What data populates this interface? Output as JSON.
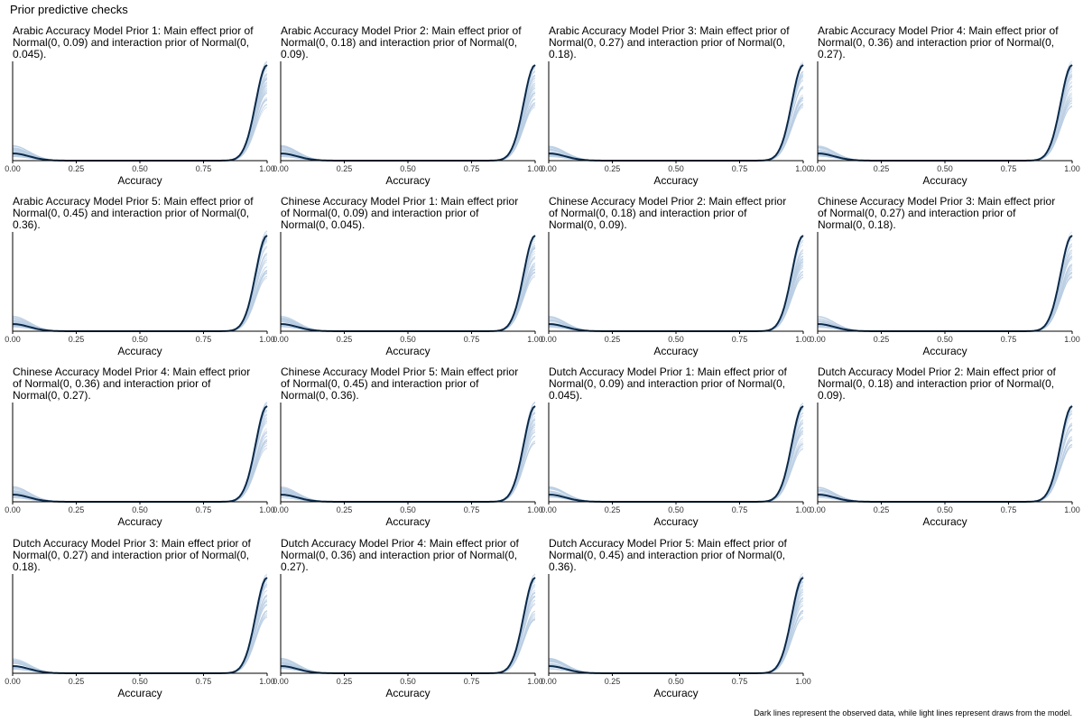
{
  "page": {
    "title": "Prior predictive checks",
    "caption": "Dark lines represent the observed data, while light lines represent draws from the model."
  },
  "colors": {
    "observed": "#0b2a4a",
    "draws": "#b9cde3",
    "axis": "#000000",
    "tick_text": "#333333"
  },
  "chart_data": [
    {
      "type": "line",
      "title": "Arabic Accuracy Model Prior 1: Main effect prior of Normal(0, 0.09) and interaction prior of Normal(0, 0.045).",
      "xlabel": "Accuracy",
      "xlim": [
        0,
        1
      ],
      "xticks": [
        "0.00",
        "0.25",
        "0.50",
        "0.75",
        "1.00"
      ],
      "series": [
        {
          "role": "observed"
        },
        {
          "role": "draws"
        }
      ]
    },
    {
      "type": "line",
      "title": "Arabic Accuracy Model Prior 2: Main effect prior of Normal(0, 0.18) and interaction prior of Normal(0, 0.09).",
      "xlabel": "Accuracy",
      "xlim": [
        0,
        1
      ],
      "xticks": [
        "0.00",
        "0.25",
        "0.50",
        "0.75",
        "1.00"
      ],
      "series": [
        {
          "role": "observed"
        },
        {
          "role": "draws"
        }
      ]
    },
    {
      "type": "line",
      "title": "Arabic Accuracy Model Prior 3: Main effect prior of Normal(0, 0.27) and interaction prior of Normal(0, 0.18).",
      "xlabel": "Accuracy",
      "xlim": [
        0,
        1
      ],
      "xticks": [
        "0.00",
        "0.25",
        "0.50",
        "0.75",
        "1.00"
      ],
      "series": [
        {
          "role": "observed"
        },
        {
          "role": "draws"
        }
      ]
    },
    {
      "type": "line",
      "title": "Arabic Accuracy Model Prior 4: Main effect prior of Normal(0, 0.36) and interaction prior of Normal(0, 0.27).",
      "xlabel": "Accuracy",
      "xlim": [
        0,
        1
      ],
      "xticks": [
        "0.00",
        "0.25",
        "0.50",
        "0.75",
        "1.00"
      ],
      "series": [
        {
          "role": "observed"
        },
        {
          "role": "draws"
        }
      ]
    },
    {
      "type": "line",
      "title": "Arabic Accuracy Model Prior 5: Main effect prior of Normal(0, 0.45) and interaction prior of Normal(0, 0.36).",
      "xlabel": "Accuracy",
      "xlim": [
        0,
        1
      ],
      "xticks": [
        "0.00",
        "0.25",
        "0.50",
        "0.75",
        "1.00"
      ],
      "series": [
        {
          "role": "observed"
        },
        {
          "role": "draws"
        }
      ]
    },
    {
      "type": "line",
      "title": "Chinese Accuracy Model Prior 1: Main effect prior of Normal(0, 0.09) and interaction prior of Normal(0, 0.045).",
      "xlabel": "Accuracy",
      "xlim": [
        0,
        1
      ],
      "xticks": [
        "0.00",
        "0.25",
        "0.50",
        "0.75",
        "1.00"
      ],
      "series": [
        {
          "role": "observed"
        },
        {
          "role": "draws"
        }
      ]
    },
    {
      "type": "line",
      "title": "Chinese Accuracy Model Prior 2: Main effect prior of Normal(0, 0.18) and interaction prior of Normal(0, 0.09).",
      "xlabel": "Accuracy",
      "xlim": [
        0,
        1
      ],
      "xticks": [
        "0.00",
        "0.25",
        "0.50",
        "0.75",
        "1.00"
      ],
      "series": [
        {
          "role": "observed"
        },
        {
          "role": "draws"
        }
      ]
    },
    {
      "type": "line",
      "title": "Chinese Accuracy Model Prior 3: Main effect prior of Normal(0, 0.27) and interaction prior of Normal(0, 0.18).",
      "xlabel": "Accuracy",
      "xlim": [
        0,
        1
      ],
      "xticks": [
        "0.00",
        "0.25",
        "0.50",
        "0.75",
        "1.00"
      ],
      "series": [
        {
          "role": "observed"
        },
        {
          "role": "draws"
        }
      ]
    },
    {
      "type": "line",
      "title": "Chinese Accuracy Model Prior 4: Main effect prior of Normal(0, 0.36) and interaction prior of Normal(0, 0.27).",
      "xlabel": "Accuracy",
      "xlim": [
        0,
        1
      ],
      "xticks": [
        "0.00",
        "0.25",
        "0.50",
        "0.75",
        "1.00"
      ],
      "series": [
        {
          "role": "observed"
        },
        {
          "role": "draws"
        }
      ]
    },
    {
      "type": "line",
      "title": "Chinese Accuracy Model Prior 5: Main effect prior of Normal(0, 0.45) and interaction prior of Normal(0, 0.36).",
      "xlabel": "Accuracy",
      "xlim": [
        0,
        1
      ],
      "xticks": [
        "0.00",
        "0.25",
        "0.50",
        "0.75",
        "1.00"
      ],
      "series": [
        {
          "role": "observed"
        },
        {
          "role": "draws"
        }
      ]
    },
    {
      "type": "line",
      "title": "Dutch Accuracy Model Prior 1: Main effect prior of Normal(0, 0.09) and interaction prior of Normal(0, 0.045).",
      "xlabel": "Accuracy",
      "xlim": [
        0,
        1
      ],
      "xticks": [
        "0.00",
        "0.25",
        "0.50",
        "0.75",
        "1.00"
      ],
      "series": [
        {
          "role": "observed"
        },
        {
          "role": "draws"
        }
      ]
    },
    {
      "type": "line",
      "title": "Dutch Accuracy Model Prior 2: Main effect prior of Normal(0, 0.18) and interaction prior of Normal(0, 0.09).",
      "xlabel": "Accuracy",
      "xlim": [
        0,
        1
      ],
      "xticks": [
        "0.00",
        "0.25",
        "0.50",
        "0.75",
        "1.00"
      ],
      "series": [
        {
          "role": "observed"
        },
        {
          "role": "draws"
        }
      ]
    },
    {
      "type": "line",
      "title": "Dutch Accuracy Model Prior 3: Main effect prior of Normal(0, 0.27) and interaction prior of Normal(0, 0.18).",
      "xlabel": "Accuracy",
      "xlim": [
        0,
        1
      ],
      "xticks": [
        "0.00",
        "0.25",
        "0.50",
        "0.75",
        "1.00"
      ],
      "series": [
        {
          "role": "observed"
        },
        {
          "role": "draws"
        }
      ]
    },
    {
      "type": "line",
      "title": "Dutch Accuracy Model Prior 4: Main effect prior of Normal(0, 0.36) and interaction prior of Normal(0, 0.27).",
      "xlabel": "Accuracy",
      "xlim": [
        0,
        1
      ],
      "xticks": [
        "0.00",
        "0.25",
        "0.50",
        "0.75",
        "1.00"
      ],
      "series": [
        {
          "role": "observed"
        },
        {
          "role": "draws"
        }
      ]
    },
    {
      "type": "line",
      "title": "Dutch Accuracy Model Prior 5: Main effect prior of Normal(0, 0.45) and interaction prior of Normal(0, 0.36).",
      "xlabel": "Accuracy",
      "xlim": [
        0,
        1
      ],
      "xticks": [
        "0.00",
        "0.25",
        "0.50",
        "0.75",
        "1.00"
      ],
      "series": [
        {
          "role": "observed"
        },
        {
          "role": "draws"
        }
      ]
    }
  ]
}
